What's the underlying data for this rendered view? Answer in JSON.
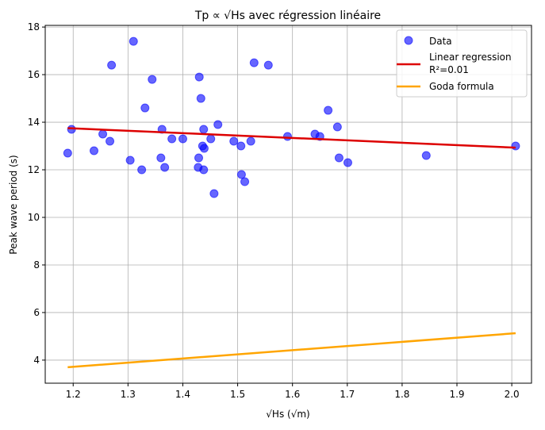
{
  "chart_data": {
    "type": "scatter",
    "title": "Tp ∝ √Hs avec régression linéaire",
    "xlabel": "√Hs (√m)",
    "ylabel": "Peak wave period (s)",
    "xlim": [
      1.149,
      2.036
    ],
    "ylim": [
      3.03,
      18.07
    ],
    "xticks": [
      1.2,
      1.3,
      1.4,
      1.5,
      1.6,
      1.7,
      1.8,
      1.9,
      2.0
    ],
    "xtick_labels": [
      "1.2",
      "1.3",
      "1.4",
      "1.5",
      "1.6",
      "1.7",
      "1.8",
      "1.9",
      "2.0"
    ],
    "yticks": [
      4,
      6,
      8,
      10,
      12,
      14,
      16,
      18
    ],
    "ytick_labels": [
      "4",
      "6",
      "8",
      "10",
      "12",
      "14",
      "16",
      "18"
    ],
    "grid": true,
    "legend_position": "top-right",
    "series": [
      {
        "name": "Data",
        "kind": "scatter",
        "color": "#0000ff",
        "points": [
          [
            1.31,
            17.4
          ],
          [
            1.27,
            16.4
          ],
          [
            1.53,
            16.5
          ],
          [
            1.556,
            16.4
          ],
          [
            1.344,
            15.8
          ],
          [
            1.43,
            15.9
          ],
          [
            1.433,
            15.0
          ],
          [
            1.331,
            14.6
          ],
          [
            1.464,
            13.9
          ],
          [
            1.197,
            13.7
          ],
          [
            1.362,
            13.7
          ],
          [
            1.438,
            13.7
          ],
          [
            1.254,
            13.5
          ],
          [
            1.267,
            13.2
          ],
          [
            1.38,
            13.3
          ],
          [
            1.4,
            13.3
          ],
          [
            1.451,
            13.3
          ],
          [
            1.493,
            13.2
          ],
          [
            1.524,
            13.2
          ],
          [
            1.591,
            13.4
          ],
          [
            1.506,
            13.0
          ],
          [
            1.436,
            13.0
          ],
          [
            1.439,
            12.9
          ],
          [
            1.19,
            12.7
          ],
          [
            1.238,
            12.8
          ],
          [
            1.304,
            12.4
          ],
          [
            1.36,
            12.5
          ],
          [
            1.429,
            12.5
          ],
          [
            1.325,
            12.0
          ],
          [
            1.367,
            12.1
          ],
          [
            1.428,
            12.1
          ],
          [
            1.438,
            12.0
          ],
          [
            1.507,
            11.8
          ],
          [
            1.513,
            11.5
          ],
          [
            1.457,
            11.0
          ],
          [
            1.665,
            14.5
          ],
          [
            1.682,
            13.8
          ],
          [
            1.641,
            13.5
          ],
          [
            1.65,
            13.4
          ],
          [
            1.685,
            12.5
          ],
          [
            1.701,
            12.3
          ],
          [
            1.844,
            12.6
          ],
          [
            2.007,
            13.0
          ]
        ]
      },
      {
        "name": "Linear regression\nR²=0.01",
        "name_lines": [
          "Linear regression",
          "R²=0.01"
        ],
        "kind": "line",
        "color": "#dd0000",
        "points": [
          [
            1.19,
            13.75
          ],
          [
            2.007,
            12.93
          ]
        ]
      },
      {
        "name": "Goda formula",
        "kind": "line",
        "color": "#ffa500",
        "points": [
          [
            1.19,
            3.7
          ],
          [
            2.007,
            5.13
          ]
        ]
      }
    ]
  }
}
